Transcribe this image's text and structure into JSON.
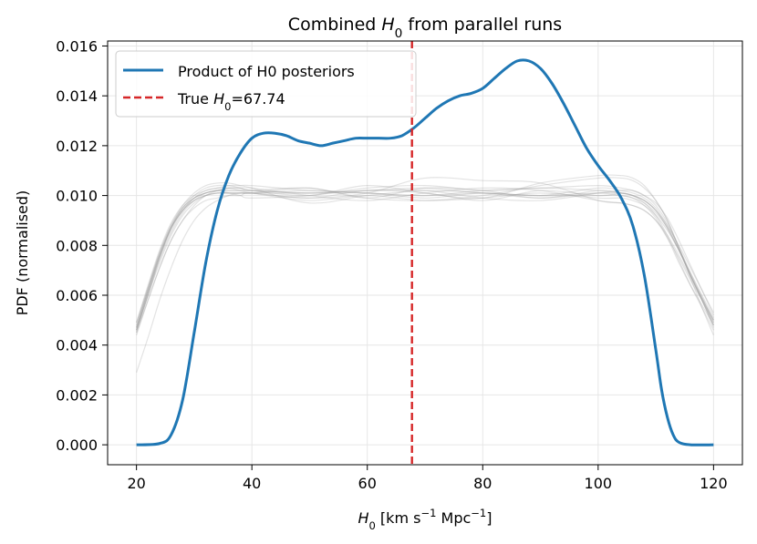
{
  "chart_data": {
    "type": "line",
    "title_parts": [
      {
        "text": "Combined ",
        "italic": false,
        "sub": false
      },
      {
        "text": "H",
        "italic": true,
        "sub": false
      },
      {
        "text": "0",
        "italic": false,
        "sub": true
      },
      {
        "text": " from parallel runs",
        "italic": false,
        "sub": false
      }
    ],
    "xlabel_parts": [
      {
        "text": "H",
        "italic": true,
        "sup": false,
        "sub": false
      },
      {
        "text": "0",
        "italic": false,
        "sub": true,
        "sup": false
      },
      {
        "text": " [km s",
        "italic": false,
        "sub": false,
        "sup": false
      },
      {
        "text": "−1",
        "italic": false,
        "sup": true,
        "sub": false
      },
      {
        "text": " Mpc",
        "italic": false,
        "sub": false,
        "sup": false
      },
      {
        "text": "−1",
        "italic": false,
        "sup": true,
        "sub": false
      },
      {
        "text": "]",
        "italic": false,
        "sub": false,
        "sup": false
      }
    ],
    "ylabel": "PDF (normalised)",
    "xlim": [
      15,
      125
    ],
    "ylim": [
      -0.0008,
      0.0162
    ],
    "xticks": [
      20,
      40,
      60,
      80,
      100,
      120
    ],
    "xtick_labels": [
      "20",
      "40",
      "60",
      "80",
      "100",
      "120"
    ],
    "yticks": [
      0.0,
      0.002,
      0.004,
      0.006,
      0.008,
      0.01,
      0.012,
      0.014,
      0.016
    ],
    "ytick_labels": [
      "0.000",
      "0.002",
      "0.004",
      "0.006",
      "0.008",
      "0.010",
      "0.012",
      "0.014",
      "0.016"
    ],
    "grid": true,
    "legend_position": "top-left",
    "legend": [
      {
        "label": "Product of H0 posteriors",
        "style": "solid",
        "color": "#1f77b4"
      },
      {
        "label_parts": [
          {
            "text": "True ",
            "italic": false,
            "sub": false
          },
          {
            "text": "H",
            "italic": true,
            "sub": false
          },
          {
            "text": "0",
            "italic": false,
            "sub": true
          },
          {
            "text": "=67.74",
            "italic": false,
            "sub": false
          }
        ],
        "style": "dashed",
        "color": "#d62728"
      }
    ],
    "true_h0": 67.74,
    "product_series": {
      "color": "#1f77b4",
      "x": [
        20,
        24,
        26,
        28,
        30,
        32,
        34,
        36,
        38,
        40,
        42,
        44,
        46,
        48,
        50,
        52,
        54,
        56,
        58,
        60,
        62,
        64,
        66,
        68,
        70,
        72,
        74,
        76,
        78,
        80,
        82,
        84,
        86,
        88,
        90,
        92,
        94,
        96,
        98,
        100,
        102,
        104,
        106,
        108,
        110,
        111,
        112,
        113,
        114,
        116,
        120
      ],
      "y": [
        0.0,
        5e-05,
        0.0004,
        0.0018,
        0.0045,
        0.0073,
        0.0094,
        0.0108,
        0.0117,
        0.0123,
        0.0125,
        0.0125,
        0.0124,
        0.0122,
        0.0121,
        0.012,
        0.0121,
        0.0122,
        0.0123,
        0.0123,
        0.0123,
        0.0123,
        0.0124,
        0.0127,
        0.0131,
        0.0135,
        0.0138,
        0.014,
        0.0141,
        0.0143,
        0.0147,
        0.0151,
        0.0154,
        0.0154,
        0.0151,
        0.0145,
        0.0137,
        0.0128,
        0.0119,
        0.0112,
        0.0106,
        0.0099,
        0.0088,
        0.0068,
        0.0038,
        0.0022,
        0.0011,
        0.0004,
        0.0001,
        0.0,
        0.0
      ]
    },
    "individual_runs": {
      "color": "#999999",
      "x": [
        20,
        22,
        24,
        26,
        28,
        30,
        32,
        34,
        36,
        38,
        40,
        50,
        60,
        70,
        80,
        90,
        100,
        104,
        106,
        108,
        110,
        112,
        114,
        116,
        118,
        120
      ],
      "series": [
        [
          0.0047,
          0.0062,
          0.0076,
          0.0087,
          0.0094,
          0.0098,
          0.01,
          0.0101,
          0.0101,
          0.0101,
          0.0101,
          0.0102,
          0.0101,
          0.01,
          0.0101,
          0.01,
          0.0101,
          0.01,
          0.0099,
          0.0096,
          0.0091,
          0.0083,
          0.0073,
          0.0064,
          0.0056,
          0.0048
        ],
        [
          0.0044,
          0.0058,
          0.0071,
          0.0082,
          0.009,
          0.0095,
          0.0098,
          0.0099,
          0.01,
          0.01,
          0.0101,
          0.0099,
          0.0102,
          0.0101,
          0.0098,
          0.0102,
          0.01,
          0.0101,
          0.01,
          0.0098,
          0.0094,
          0.0087,
          0.0078,
          0.0068,
          0.0059,
          0.005
        ],
        [
          0.0029,
          0.0043,
          0.0058,
          0.0071,
          0.0082,
          0.009,
          0.0095,
          0.0098,
          0.01,
          0.0101,
          0.0101,
          0.0103,
          0.0099,
          0.0103,
          0.0102,
          0.0099,
          0.0102,
          0.0101,
          0.01,
          0.0097,
          0.0092,
          0.0084,
          0.0074,
          0.0064,
          0.0055,
          0.0046
        ],
        [
          0.0049,
          0.0064,
          0.0078,
          0.0089,
          0.0096,
          0.01,
          0.0102,
          0.0103,
          0.0103,
          0.0102,
          0.0101,
          0.0098,
          0.01,
          0.0098,
          0.0099,
          0.0101,
          0.0099,
          0.0099,
          0.0098,
          0.0096,
          0.0092,
          0.0086,
          0.0078,
          0.0069,
          0.006,
          0.0051
        ],
        [
          0.0046,
          0.006,
          0.0074,
          0.0085,
          0.0093,
          0.0098,
          0.0101,
          0.0102,
          0.0103,
          0.0103,
          0.0103,
          0.01,
          0.0098,
          0.0101,
          0.0103,
          0.0102,
          0.0098,
          0.0097,
          0.0096,
          0.0094,
          0.009,
          0.0083,
          0.0075,
          0.0066,
          0.0058,
          0.005
        ],
        [
          0.0045,
          0.006,
          0.0075,
          0.0087,
          0.0095,
          0.01,
          0.0103,
          0.0104,
          0.0104,
          0.0103,
          0.0102,
          0.0101,
          0.0101,
          0.0099,
          0.0101,
          0.01,
          0.0103,
          0.0102,
          0.0101,
          0.0099,
          0.0095,
          0.0088,
          0.0079,
          0.0069,
          0.0059,
          0.0049
        ],
        [
          0.0048,
          0.0063,
          0.0077,
          0.0088,
          0.0095,
          0.0099,
          0.0101,
          0.0102,
          0.0102,
          0.0102,
          0.0102,
          0.0101,
          0.0102,
          0.0102,
          0.0099,
          0.0098,
          0.0101,
          0.0102,
          0.0102,
          0.01,
          0.0096,
          0.0089,
          0.0079,
          0.0068,
          0.0058,
          0.0047
        ],
        [
          0.0046,
          0.0061,
          0.0075,
          0.0087,
          0.0095,
          0.0099,
          0.0101,
          0.0102,
          0.0101,
          0.01,
          0.0099,
          0.01,
          0.0103,
          0.0104,
          0.0102,
          0.0103,
          0.0104,
          0.0103,
          0.0102,
          0.01,
          0.0097,
          0.0091,
          0.0082,
          0.0072,
          0.0062,
          0.0052
        ],
        [
          0.0047,
          0.0062,
          0.0076,
          0.0087,
          0.0094,
          0.0099,
          0.0101,
          0.0102,
          0.0102,
          0.0102,
          0.0102,
          0.0103,
          0.0099,
          0.0098,
          0.01,
          0.0104,
          0.0107,
          0.0107,
          0.0106,
          0.0103,
          0.0098,
          0.009,
          0.0079,
          0.0068,
          0.0058,
          0.0048
        ],
        [
          0.0046,
          0.006,
          0.0073,
          0.0084,
          0.0092,
          0.0097,
          0.01,
          0.0101,
          0.0101,
          0.0101,
          0.0101,
          0.0099,
          0.0101,
          0.0107,
          0.0106,
          0.0105,
          0.0098,
          0.0097,
          0.0096,
          0.0094,
          0.009,
          0.0084,
          0.0076,
          0.0067,
          0.0058,
          0.0049
        ],
        [
          0.0045,
          0.0058,
          0.0071,
          0.0082,
          0.009,
          0.0096,
          0.01,
          0.0102,
          0.0103,
          0.0103,
          0.0102,
          0.01,
          0.0104,
          0.0101,
          0.0099,
          0.0105,
          0.0108,
          0.0108,
          0.0107,
          0.0104,
          0.0098,
          0.009,
          0.0079,
          0.0067,
          0.0055,
          0.0044
        ],
        [
          0.0049,
          0.0063,
          0.0077,
          0.0088,
          0.0096,
          0.0101,
          0.0104,
          0.0105,
          0.0105,
          0.0104,
          0.0103,
          0.0097,
          0.01,
          0.0102,
          0.0101,
          0.0099,
          0.0101,
          0.0101,
          0.01,
          0.0098,
          0.0094,
          0.0088,
          0.008,
          0.0071,
          0.0062,
          0.0053
        ],
        [
          0.0047,
          0.0062,
          0.0076,
          0.0087,
          0.0094,
          0.0098,
          0.01,
          0.0101,
          0.0101,
          0.0101,
          0.0101,
          0.0101,
          0.0102,
          0.0103,
          0.0101,
          0.01,
          0.01,
          0.01,
          0.0099,
          0.0097,
          0.0093,
          0.0087,
          0.0078,
          0.0068,
          0.0059,
          0.005
        ],
        [
          0.0046,
          0.0061,
          0.0075,
          0.0086,
          0.0094,
          0.0099,
          0.0102,
          0.0103,
          0.0104,
          0.0104,
          0.0104,
          0.0102,
          0.0101,
          0.01,
          0.0102,
          0.0103,
          0.0102,
          0.0101,
          0.01,
          0.0098,
          0.0094,
          0.0087,
          0.0078,
          0.0068,
          0.0058,
          0.0048
        ]
      ]
    }
  }
}
